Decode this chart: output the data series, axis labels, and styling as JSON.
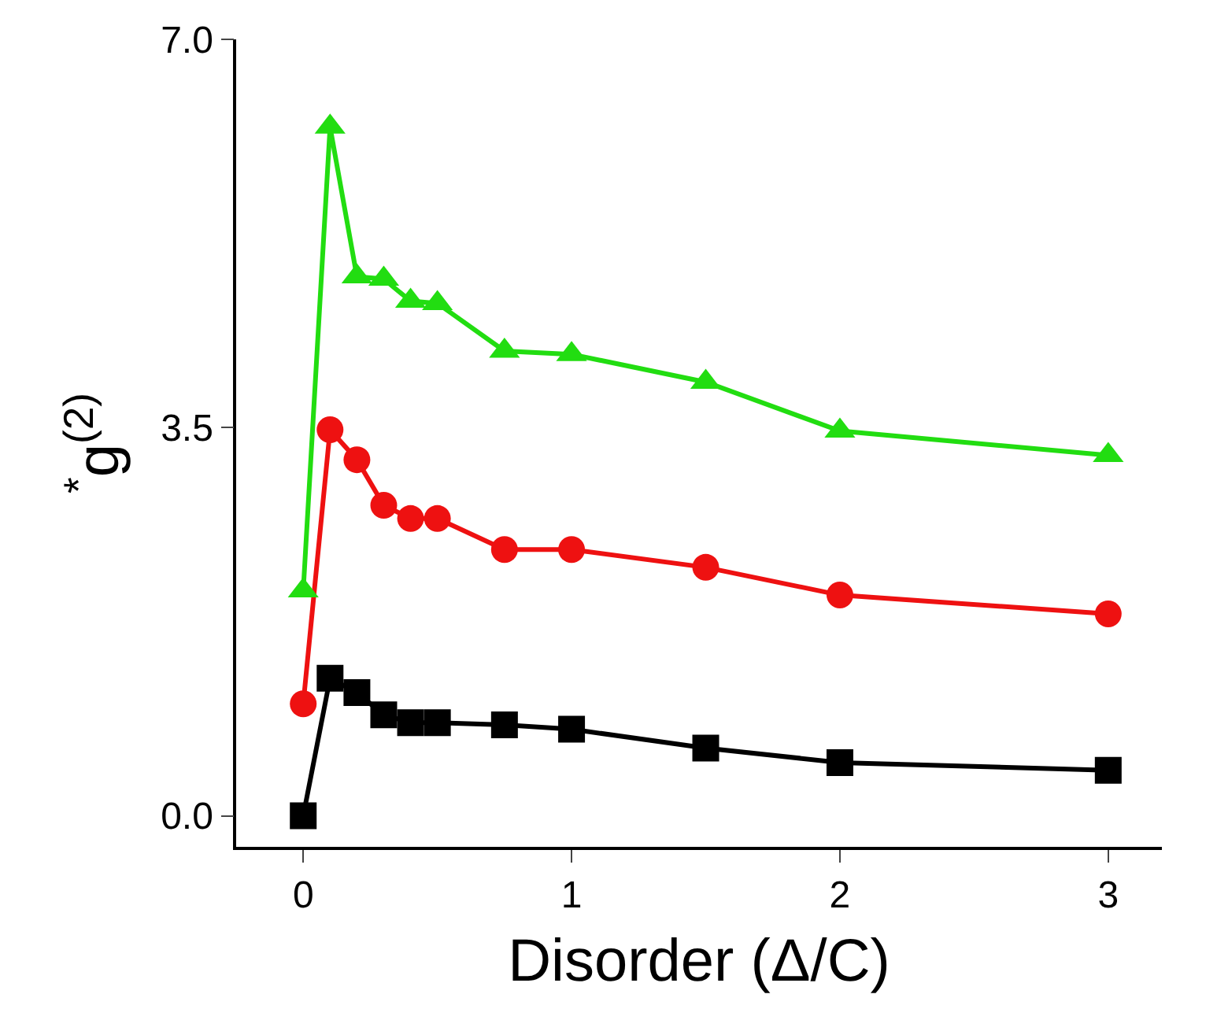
{
  "chart_data": {
    "type": "line",
    "xlabel": "Disorder (Δ/C)",
    "ylabel": "$^{*}$g$^{(2)}$",
    "x": [
      0,
      0.1,
      0.2,
      0.3,
      0.4,
      0.5,
      0.75,
      1,
      1.5,
      2,
      3
    ],
    "series": [
      {
        "color": "#000000",
        "marker": "square",
        "values": [
          0,
          1.24,
          1.11,
          0.91,
          0.84,
          0.84,
          0.82,
          0.78,
          0.61,
          0.48,
          0.41
        ]
      },
      {
        "color": "#ee1111",
        "marker": "circle",
        "values": [
          1.01,
          3.48,
          3.21,
          2.8,
          2.68,
          2.68,
          2.4,
          2.4,
          2.24,
          1.99,
          1.82
        ]
      },
      {
        "color": "#22dd11",
        "marker": "triangle",
        "values": [
          2.03,
          6.21,
          4.86,
          4.84,
          4.64,
          4.62,
          4.19,
          4.16,
          3.91,
          3.47,
          3.25
        ]
      }
    ],
    "xlim": [
      -0.25,
      3.2
    ],
    "xticks": [
      0,
      1,
      2,
      3
    ],
    "ylim": [
      -0.28,
      7.0
    ],
    "yticks": [
      {
        "value": 0,
        "label": "0.0"
      },
      {
        "value": 3.5,
        "label": "3.5"
      },
      {
        "value": 7,
        "label": "7.0"
      }
    ],
    "line_style": "solid"
  }
}
